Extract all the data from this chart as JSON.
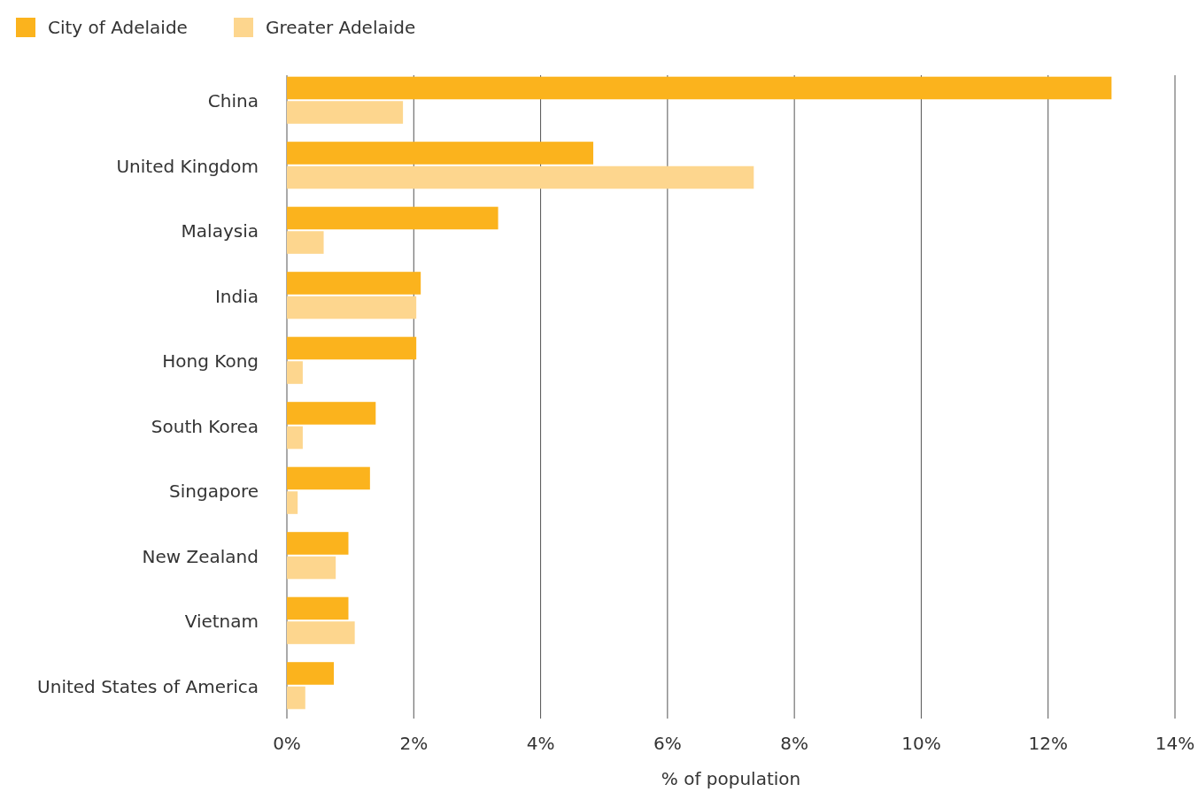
{
  "chart_data": {
    "type": "bar",
    "orientation": "horizontal",
    "xlabel": "% of population",
    "categories": [
      "China",
      "United Kingdom",
      "Malaysia",
      "India",
      "Hong Kong",
      "South Korea",
      "Singapore",
      "New Zealand",
      "Vietnam",
      "United States of America"
    ],
    "series": [
      {
        "name": "City of Adelaide",
        "color": "#fbb31d",
        "values": [
          13.0,
          4.83,
          3.33,
          2.11,
          2.04,
          1.4,
          1.31,
          0.97,
          0.97,
          0.74
        ]
      },
      {
        "name": "Greater Adelaide",
        "color": "#fdd68e",
        "values": [
          1.83,
          7.36,
          0.58,
          2.04,
          0.25,
          0.25,
          0.17,
          0.77,
          1.07,
          0.29
        ]
      }
    ],
    "xlim": [
      0,
      14
    ],
    "xticks": [
      {
        "value": 0,
        "label": "0%"
      },
      {
        "value": 2,
        "label": "2%"
      },
      {
        "value": 4,
        "label": "4%"
      },
      {
        "value": 6,
        "label": "6%"
      },
      {
        "value": 8,
        "label": "8%"
      },
      {
        "value": 10,
        "label": "10%"
      },
      {
        "value": 12,
        "label": "12%"
      },
      {
        "value": 14,
        "label": "14%"
      }
    ],
    "grid": "x",
    "legend": "top left"
  }
}
